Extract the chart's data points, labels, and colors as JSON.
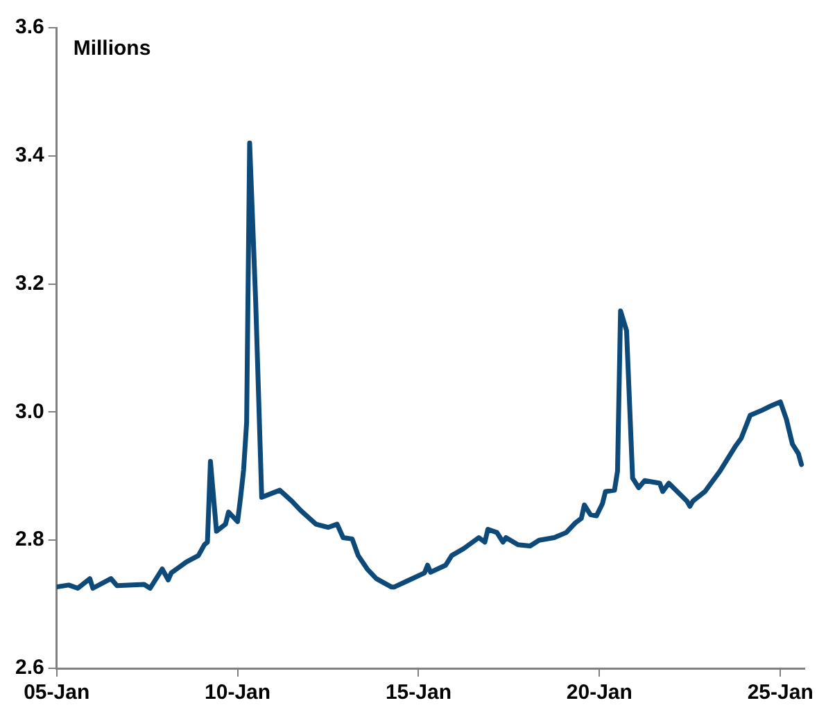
{
  "chart_data": {
    "type": "line",
    "ylabel": "Millions",
    "marker": "none",
    "x": [
      "2005-01",
      "2005-05",
      "2005-08",
      "2005-12",
      "2006-01",
      "2006-07",
      "2006-09",
      "2007-06",
      "2007-08",
      "2007-12",
      "2008-02",
      "2008-03",
      "2008-08",
      "2008-12",
      "2009-02",
      "2009-03",
      "2009-04",
      "2009-06",
      "2009-09",
      "2009-10",
      "2010-01",
      "2010-02",
      "2010-03",
      "2010-04",
      "2010-05",
      "2010-07",
      "2010-09",
      "2011-03",
      "2011-07",
      "2011-10",
      "2012-03",
      "2012-07",
      "2012-10",
      "2012-12",
      "2013-03",
      "2013-05",
      "2013-08",
      "2013-11",
      "2014-04",
      "2014-05",
      "2014-10",
      "2015-03",
      "2015-04",
      "2015-05",
      "2015-10",
      "2015-12",
      "2016-04",
      "2016-09",
      "2016-11",
      "2016-12",
      "2017-03",
      "2017-05",
      "2017-06",
      "2017-10",
      "2018-02",
      "2018-05",
      "2018-10",
      "2019-02",
      "2019-05",
      "2019-07",
      "2019-08",
      "2019-10",
      "2019-12",
      "2020-02",
      "2020-03",
      "2020-06",
      "2020-07",
      "2020-08",
      "2020-10",
      "2020-12",
      "2021-02",
      "2021-04",
      "2021-09",
      "2021-10",
      "2021-12",
      "2022-06",
      "2022-07",
      "2022-08",
      "2022-12",
      "2023-05",
      "2023-10",
      "2023-12",
      "2024-03",
      "2024-07",
      "2024-10",
      "2025-01",
      "2025-03",
      "2025-05",
      "2025-07",
      "2025-08"
    ],
    "series": [
      {
        "color": "#0d4a7a",
        "values": [
          2.727,
          2.73,
          2.725,
          2.74,
          2.725,
          2.74,
          2.729,
          2.731,
          2.725,
          2.755,
          2.738,
          2.749,
          2.766,
          2.776,
          2.793,
          2.797,
          2.923,
          2.814,
          2.825,
          2.844,
          2.829,
          2.867,
          2.91,
          2.984,
          3.42,
          3.173,
          2.867,
          2.878,
          2.861,
          2.846,
          2.825,
          2.82,
          2.825,
          2.804,
          2.802,
          2.776,
          2.755,
          2.74,
          2.727,
          2.727,
          2.738,
          2.749,
          2.761,
          2.75,
          2.761,
          2.776,
          2.787,
          2.804,
          2.797,
          2.817,
          2.812,
          2.797,
          2.804,
          2.793,
          2.791,
          2.8,
          2.804,
          2.812,
          2.827,
          2.834,
          2.855,
          2.84,
          2.838,
          2.857,
          2.876,
          2.878,
          2.908,
          3.158,
          3.127,
          2.897,
          2.882,
          2.893,
          2.889,
          2.876,
          2.889,
          2.861,
          2.853,
          2.861,
          2.876,
          2.908,
          2.946,
          2.959,
          2.995,
          3.003,
          3.01,
          3.016,
          2.989,
          2.95,
          2.935,
          2.918
        ]
      }
    ],
    "xlim": [
      "2005-01",
      "2025-09"
    ],
    "xticks": [
      {
        "value": "2005-01",
        "label": "05-Jan"
      },
      {
        "value": "2010-01",
        "label": "10-Jan"
      },
      {
        "value": "2015-01",
        "label": "15-Jan"
      },
      {
        "value": "2020-01",
        "label": "20-Jan"
      },
      {
        "value": "2025-01",
        "label": "25-Jan"
      }
    ],
    "ylim": [
      2.6,
      3.6
    ],
    "yticks": [
      {
        "value": 2.6,
        "label": "2.6"
      },
      {
        "value": 2.8,
        "label": "2.8"
      },
      {
        "value": 3.0,
        "label": "3.0"
      },
      {
        "value": 3.2,
        "label": "3.2"
      },
      {
        "value": 3.4,
        "label": "3.4"
      },
      {
        "value": 3.6,
        "label": "3.6"
      }
    ]
  }
}
